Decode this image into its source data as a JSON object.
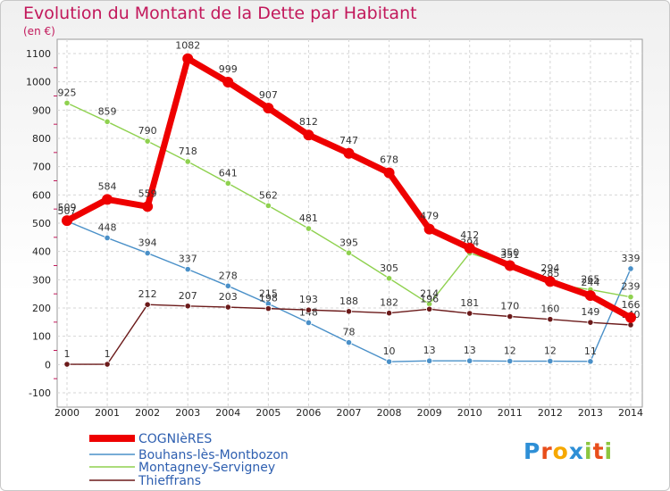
{
  "title": "Evolution du Montant de la Dette par Habitant",
  "unit": "(en €)",
  "logo": "Proxiti",
  "chart_data": {
    "type": "line",
    "title": "Evolution du Montant de la Dette par Habitant",
    "ylabel": "(en €)",
    "x": [
      "2000",
      "2001",
      "2002",
      "2003",
      "2004",
      "2005",
      "2006",
      "2007",
      "2008",
      "2009",
      "2010",
      "2011",
      "2012",
      "2013",
      "2014"
    ],
    "ylim": [
      -100,
      1100
    ],
    "yticks": [
      -100,
      0,
      100,
      200,
      300,
      400,
      500,
      600,
      700,
      800,
      900,
      1000,
      1100
    ],
    "grid": true,
    "legend_position": "bottom-left",
    "series": [
      {
        "name": "Bouhans-lès-Montbozon",
        "color": "#4a90c8",
        "values": [
          507,
          448,
          394,
          337,
          278,
          215,
          148,
          78,
          10,
          13,
          13,
          12,
          12,
          11,
          339
        ]
      },
      {
        "name": "Montagney-Servigney",
        "color": "#8fd14f",
        "values": [
          925,
          859,
          790,
          718,
          641,
          562,
          481,
          395,
          305,
          214,
          394,
          351,
          285,
          265,
          239
        ]
      },
      {
        "name": "Thieffrans",
        "color": "#6b1a1a",
        "values": [
          1,
          1,
          212,
          207,
          203,
          198,
          193,
          188,
          182,
          196,
          181,
          170,
          160,
          149,
          140
        ]
      },
      {
        "name": "COGNIèRES",
        "color": "#ee0000",
        "thick": true,
        "values": [
          509,
          584,
          559,
          1082,
          999,
          907,
          812,
          747,
          678,
          479,
          412,
          350,
          294,
          244,
          166
        ]
      }
    ]
  }
}
